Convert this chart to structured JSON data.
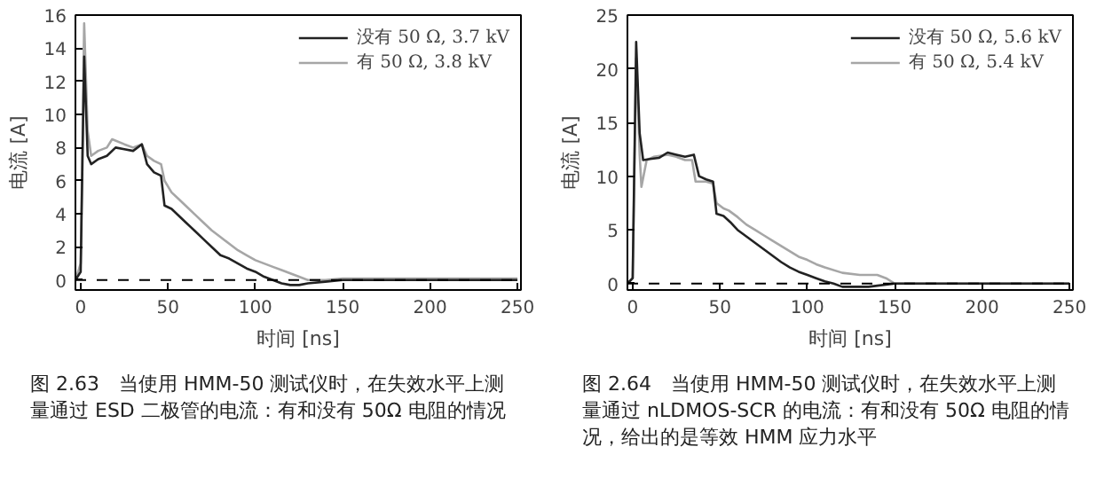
{
  "chart_data": [
    {
      "type": "line",
      "xlabel": "时间 [ns]",
      "ylabel": "电流 [A]",
      "xlim": [
        -3,
        252
      ],
      "ylim": [
        -0.6,
        16
      ],
      "xticks": [
        0,
        50,
        100,
        150,
        200,
        250
      ],
      "yticks": [
        0,
        2,
        4,
        6,
        8,
        10,
        12,
        14,
        16
      ],
      "grid": false,
      "legend": "top right",
      "marker": "none",
      "line_style": "solid",
      "series": [
        {
          "name": "没有 50 Ω, 3.7 kV",
          "color": "#222222",
          "x": [
            -3,
            0,
            2,
            4,
            6,
            10,
            15,
            20,
            25,
            30,
            35,
            38,
            42,
            46,
            48,
            52,
            56,
            60,
            65,
            70,
            75,
            80,
            85,
            90,
            95,
            100,
            105,
            110,
            115,
            120,
            125,
            130,
            140,
            150,
            200,
            250
          ],
          "values": [
            0,
            0.5,
            13.5,
            7.5,
            7,
            7.3,
            7.5,
            8,
            7.9,
            7.8,
            8.2,
            7,
            6.5,
            6.3,
            4.5,
            4.3,
            3.9,
            3.5,
            3,
            2.5,
            2,
            1.5,
            1.3,
            1,
            0.7,
            0.5,
            0.2,
            0,
            -0.2,
            -0.3,
            -0.3,
            -0.2,
            -0.1,
            0,
            0,
            0
          ]
        },
        {
          "name": "有 50 Ω, 3.8 kV",
          "color": "#a6a6a6",
          "x": [
            -3,
            0,
            2,
            4,
            6,
            10,
            15,
            18,
            25,
            30,
            35,
            38,
            42,
            46,
            48,
            52,
            56,
            60,
            65,
            70,
            75,
            80,
            85,
            90,
            95,
            100,
            105,
            110,
            115,
            120,
            125,
            130,
            140,
            150,
            200,
            250
          ],
          "values": [
            0,
            1,
            15.5,
            9,
            7.5,
            7.8,
            8,
            8.5,
            8.2,
            8,
            8.2,
            7.5,
            7.2,
            7,
            6,
            5.3,
            4.9,
            4.5,
            4,
            3.5,
            3,
            2.6,
            2.2,
            1.8,
            1.5,
            1.2,
            1,
            0.8,
            0.6,
            0.4,
            0.2,
            0,
            0,
            0.1,
            0.1,
            0.1
          ]
        }
      ],
      "ref_lines": [
        {
          "axis": "y",
          "value": 0,
          "color": "#000000",
          "line_style": "dashed"
        }
      ],
      "annotations": [
        "图 2.63　当使用 HMM-50 测试仪时，在失效水平上测量通过 ESD 二极管的电流：有和没有 50Ω 电阻的情况"
      ]
    },
    {
      "type": "line",
      "xlabel": "时间 [ns]",
      "ylabel": "电流 [A]",
      "xlim": [
        -3,
        252
      ],
      "ylim": [
        -0.6,
        25
      ],
      "xticks": [
        0,
        50,
        100,
        150,
        200,
        250
      ],
      "yticks": [
        0,
        5,
        10,
        15,
        20,
        25
      ],
      "grid": false,
      "legend": "top right",
      "marker": "none",
      "line_style": "solid",
      "series": [
        {
          "name": "没有 50 Ω, 5.6 kV",
          "color": "#222222",
          "x": [
            -3,
            0,
            2,
            4,
            6,
            10,
            15,
            20,
            25,
            30,
            35,
            38,
            42,
            46,
            48,
            52,
            56,
            60,
            65,
            70,
            75,
            80,
            85,
            90,
            95,
            100,
            105,
            110,
            115,
            120,
            125,
            135,
            140,
            150,
            200,
            250
          ],
          "values": [
            0,
            0.5,
            22.5,
            14,
            11.5,
            11.6,
            11.7,
            12.2,
            12,
            11.8,
            12,
            10,
            9.7,
            9.5,
            6.5,
            6.3,
            5.7,
            5,
            4.4,
            3.8,
            3.2,
            2.6,
            2,
            1.5,
            1.1,
            0.8,
            0.5,
            0.2,
            0,
            -0.3,
            -0.3,
            -0.3,
            -0.2,
            0,
            0,
            0
          ]
        },
        {
          "name": "有 50 Ω, 5.4 kV",
          "color": "#a6a6a6",
          "x": [
            -3,
            0,
            2,
            4,
            5,
            8,
            12,
            20,
            25,
            30,
            34,
            36,
            42,
            46,
            48,
            52,
            55,
            60,
            65,
            70,
            75,
            80,
            85,
            90,
            95,
            100,
            105,
            110,
            120,
            130,
            140,
            145,
            150,
            200,
            250
          ],
          "values": [
            0,
            0.5,
            21,
            12,
            9,
            11.5,
            11.8,
            12,
            11.8,
            11.5,
            11.5,
            9.5,
            9.5,
            9.3,
            7.5,
            7,
            6.8,
            6.2,
            5.5,
            5,
            4.5,
            4,
            3.5,
            3,
            2.5,
            2.2,
            1.8,
            1.5,
            1,
            0.8,
            0.8,
            0.5,
            0,
            0,
            0
          ]
        }
      ],
      "ref_lines": [
        {
          "axis": "y",
          "value": 0,
          "color": "#000000",
          "line_style": "dashed"
        }
      ],
      "annotations": [
        "图 2.64　当使用 HMM-50 测试仪时，在失效水平上测量通过 nLDMOS-SCR 的电流：有和没有 50Ω 电阻的情况，给出的是等效 HMM 应力水平"
      ]
    }
  ]
}
